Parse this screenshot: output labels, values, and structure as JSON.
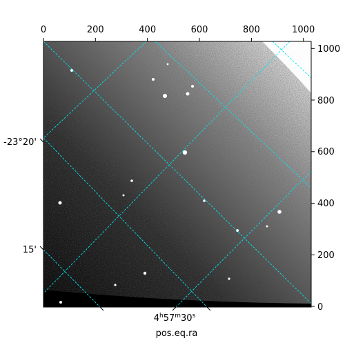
{
  "image": {
    "description_free": true,
    "pixel_axes": {
      "top_ticks": [
        "0",
        "200",
        "400",
        "600",
        "800",
        "1000"
      ],
      "right_ticks": [
        "0",
        "200",
        "400",
        "600",
        "800",
        "1000"
      ],
      "x_range": [
        0,
        1030
      ],
      "y_range": [
        0,
        1030
      ]
    },
    "world_axes": {
      "dec_ticks": [
        "-23°20'",
        "15'"
      ],
      "ra_tick": {
        "h": "4",
        "m": "57",
        "s": "30"
      },
      "xlabel": "pos.eq.ra"
    },
    "colors": {
      "grid": "#00e5ee",
      "frame": "#000000",
      "sky_dark": "#111111",
      "sky_light": "#f4f4f4"
    }
  }
}
